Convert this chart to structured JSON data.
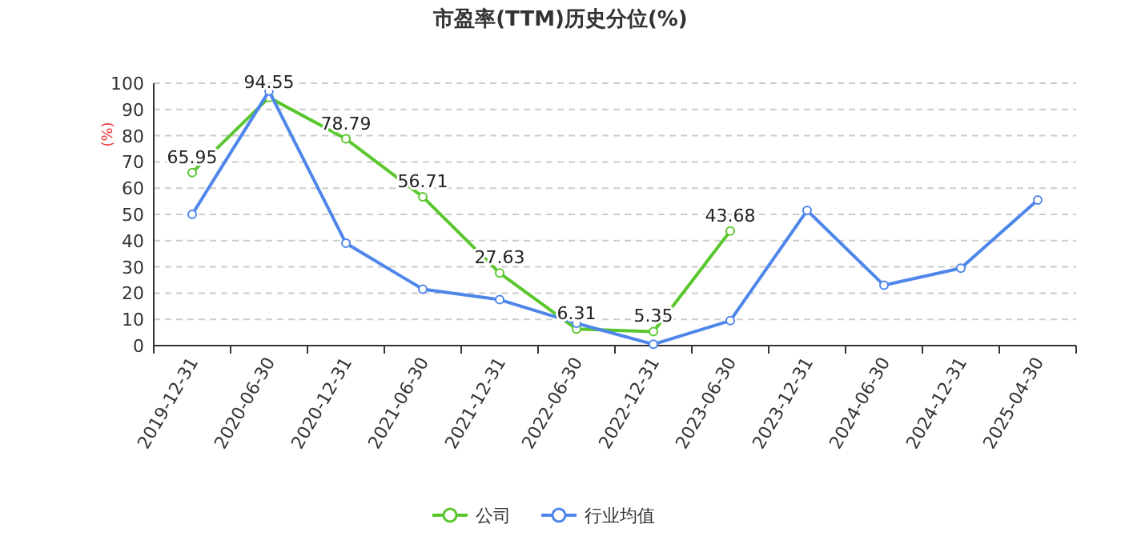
{
  "chart_data": {
    "type": "line",
    "title": "市盈率(TTM)历史分位(%)",
    "ylabel": "(%)",
    "categories": [
      "2019-12-31",
      "2020-06-30",
      "2020-12-31",
      "2021-06-30",
      "2021-12-31",
      "2022-06-30",
      "2022-12-31",
      "2023-06-30",
      "2023-12-31",
      "2024-06-30",
      "2024-12-31",
      "2025-04-30"
    ],
    "series": [
      {
        "name": "公司",
        "color": "#5ac72e",
        "values": [
          65.95,
          94.55,
          78.79,
          56.71,
          27.63,
          6.31,
          5.35,
          43.68,
          null,
          null,
          null,
          null
        ],
        "value_labels": [
          "65.95",
          "94.55",
          "78.79",
          "56.71",
          "27.63",
          "6.31",
          "5.35",
          "43.68",
          null,
          null,
          null,
          null
        ]
      },
      {
        "name": "行业均值",
        "color": "#4e86ea",
        "values": [
          50,
          97,
          39,
          21.5,
          17.5,
          8.5,
          0.5,
          9.5,
          51.5,
          23,
          29.5,
          55.5
        ]
      }
    ],
    "ylim": [
      0,
      100
    ],
    "yticks": [
      0,
      10,
      20,
      30,
      40,
      50,
      60,
      70,
      80,
      90,
      100
    ],
    "grid": "y",
    "legend": "bottom",
    "marker": "circle",
    "line_style": "solid"
  }
}
